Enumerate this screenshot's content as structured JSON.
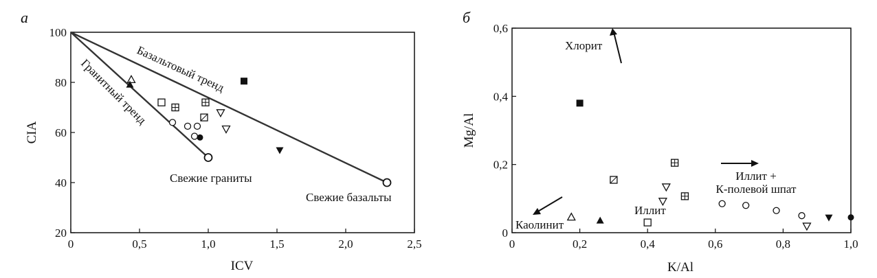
{
  "chart_data": [
    {
      "type": "scatter",
      "panel_label": "а",
      "xlabel": "ICV",
      "ylabel": "CIA",
      "xlim": [
        0,
        2.5
      ],
      "ylim": [
        20,
        100
      ],
      "x_ticks": [
        {
          "v": 0,
          "label": "0"
        },
        {
          "v": 0.5,
          "label": "0,5"
        },
        {
          "v": 1.0,
          "label": "1,0"
        },
        {
          "v": 1.5,
          "label": "1,5"
        },
        {
          "v": 2.0,
          "label": "2,0"
        },
        {
          "v": 2.5,
          "label": "2,5"
        }
      ],
      "y_ticks": [
        {
          "v": 20,
          "label": "20"
        },
        {
          "v": 40,
          "label": "40"
        },
        {
          "v": 60,
          "label": "60"
        },
        {
          "v": 80,
          "label": "80"
        },
        {
          "v": 100,
          "label": "100"
        }
      ],
      "trend_lines": [
        {
          "label": "Гранитный тренд",
          "from": [
            0,
            100
          ],
          "to": [
            1.0,
            50
          ]
        },
        {
          "label": "Базальтовый тренд",
          "from": [
            0,
            100
          ],
          "to": [
            2.3,
            40
          ]
        }
      ],
      "end_members": [
        {
          "label": "Свежие граниты",
          "x": 1.0,
          "y": 50
        },
        {
          "label": "Свежие базальты",
          "x": 2.3,
          "y": 40
        }
      ],
      "points": [
        {
          "x": 1.26,
          "y": 80.5,
          "marker": "square-filled"
        },
        {
          "x": 0.44,
          "y": 81,
          "marker": "triangle-up-open"
        },
        {
          "x": 0.43,
          "y": 79,
          "marker": "triangle-up-filled"
        },
        {
          "x": 0.66,
          "y": 72,
          "marker": "square-open"
        },
        {
          "x": 0.76,
          "y": 70,
          "marker": "square-crossed"
        },
        {
          "x": 0.98,
          "y": 72,
          "marker": "square-crossed"
        },
        {
          "x": 0.97,
          "y": 66,
          "marker": "square-diag"
        },
        {
          "x": 1.09,
          "y": 68,
          "marker": "triangle-down-open"
        },
        {
          "x": 1.13,
          "y": 61.5,
          "marker": "triangle-down-open"
        },
        {
          "x": 0.74,
          "y": 64,
          "marker": "circle-open"
        },
        {
          "x": 0.85,
          "y": 62.5,
          "marker": "circle-open"
        },
        {
          "x": 0.92,
          "y": 62.5,
          "marker": "circle-open"
        },
        {
          "x": 0.9,
          "y": 58.5,
          "marker": "circle-open"
        },
        {
          "x": 0.94,
          "y": 58,
          "marker": "circle-filled"
        },
        {
          "x": 1.52,
          "y": 53,
          "marker": "triangle-down-filled"
        }
      ]
    },
    {
      "type": "scatter",
      "panel_label": "б",
      "xlabel": "K/Al",
      "ylabel": "Mg/Al",
      "xlim": [
        0,
        1.0
      ],
      "ylim": [
        0,
        0.6
      ],
      "x_ticks": [
        {
          "v": 0,
          "label": "0"
        },
        {
          "v": 0.2,
          "label": "0,2"
        },
        {
          "v": 0.4,
          "label": "0,4"
        },
        {
          "v": 0.6,
          "label": "0,6"
        },
        {
          "v": 0.8,
          "label": "0,8"
        },
        {
          "v": 1.0,
          "label": "1,0"
        }
      ],
      "y_ticks": [
        {
          "v": 0,
          "label": "0"
        },
        {
          "v": 0.2,
          "label": "0,2"
        },
        {
          "v": 0.4,
          "label": "0,4"
        },
        {
          "v": 0.6,
          "label": "0,6"
        }
      ],
      "annotations": [
        "Хлорит",
        "Иллит +",
        "К-полевой шпат",
        "Иллит",
        "Каолинит"
      ],
      "points": [
        {
          "x": 0.2,
          "y": 0.38,
          "marker": "square-filled"
        },
        {
          "x": 0.175,
          "y": 0.045,
          "marker": "triangle-up-open"
        },
        {
          "x": 0.26,
          "y": 0.035,
          "marker": "triangle-up-filled"
        },
        {
          "x": 0.4,
          "y": 0.03,
          "marker": "square-open"
        },
        {
          "x": 0.48,
          "y": 0.205,
          "marker": "square-crossed"
        },
        {
          "x": 0.51,
          "y": 0.107,
          "marker": "square-crossed"
        },
        {
          "x": 0.3,
          "y": 0.155,
          "marker": "square-diag"
        },
        {
          "x": 0.455,
          "y": 0.135,
          "marker": "triangle-down-open"
        },
        {
          "x": 0.445,
          "y": 0.093,
          "marker": "triangle-down-open"
        },
        {
          "x": 0.87,
          "y": 0.02,
          "marker": "triangle-down-open"
        },
        {
          "x": 0.62,
          "y": 0.085,
          "marker": "circle-open"
        },
        {
          "x": 0.69,
          "y": 0.08,
          "marker": "circle-open"
        },
        {
          "x": 0.78,
          "y": 0.065,
          "marker": "circle-open"
        },
        {
          "x": 0.855,
          "y": 0.05,
          "marker": "circle-open"
        },
        {
          "x": 1.0,
          "y": 0.045,
          "marker": "circle-filled"
        },
        {
          "x": 0.935,
          "y": 0.045,
          "marker": "triangle-down-filled"
        }
      ]
    }
  ]
}
